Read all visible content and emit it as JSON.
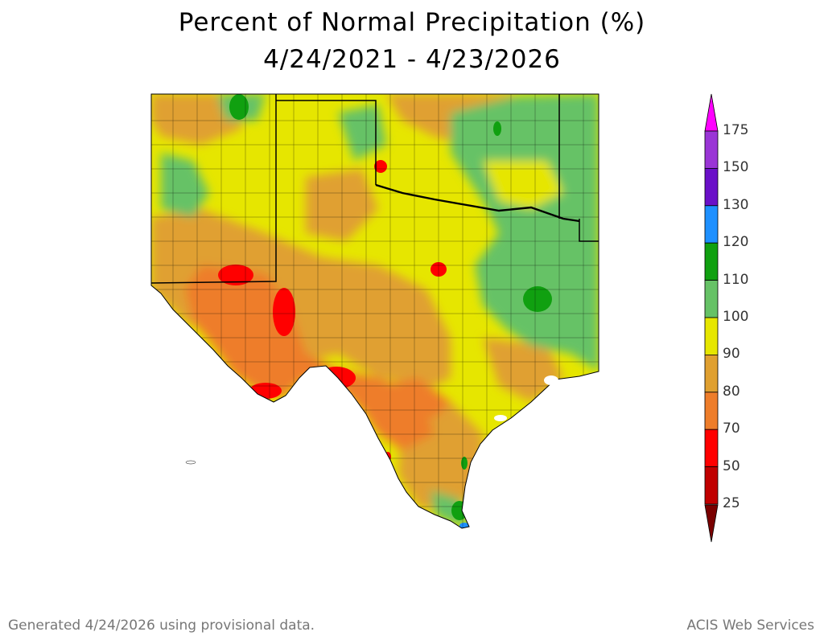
{
  "title": "Percent of Normal Precipitation (%)",
  "subtitle": "4/24/2021 - 4/23/2026",
  "legend": {
    "entries": [
      {
        "label": "175",
        "color": "#ff00ff"
      },
      {
        "label": "150",
        "color": "#9a35d6"
      },
      {
        "label": "130",
        "color": "#6a10c8"
      },
      {
        "label": "120",
        "color": "#1e90ff"
      },
      {
        "label": "110",
        "color": "#10a010"
      },
      {
        "label": "100",
        "color": "#66c266"
      },
      {
        "label": "90",
        "color": "#e6e600"
      },
      {
        "label": "80",
        "color": "#e0a030"
      },
      {
        "label": "70",
        "color": "#ee7d2a"
      },
      {
        "label": "50",
        "color": "#ff0000"
      },
      {
        "label": "25",
        "color": "#c00000"
      }
    ],
    "bottom_color": "#7a0000"
  },
  "footer": {
    "generated": "Generated 4/24/2026  using provisional data.",
    "source": "ACIS Web Services"
  }
}
